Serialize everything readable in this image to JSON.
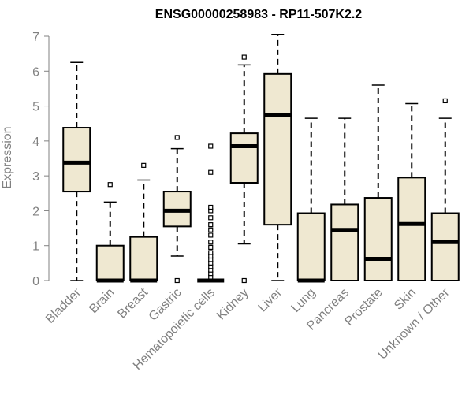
{
  "chart_data": {
    "type": "box",
    "title": "ENSG00000258983 - RP11-507K2.2",
    "xlabel": "",
    "ylabel": "Expression",
    "ylim": [
      0,
      7
    ],
    "yticks": [
      0,
      1,
      2,
      3,
      4,
      5,
      6,
      7
    ],
    "grid": false,
    "box_fill": "#efe8d1",
    "categories": [
      "Bladder",
      "Brain",
      "Breast",
      "Gastric",
      "Hematopoietic cells",
      "Kidney",
      "Liver",
      "Lung",
      "Pancreas",
      "Prostate",
      "Skin",
      "Unknown / Other"
    ],
    "boxes": [
      {
        "whisker_low": 0,
        "q1": 2.55,
        "median": 3.38,
        "q3": 4.38,
        "whisker_high": 6.25,
        "outliers": []
      },
      {
        "whisker_low": 0,
        "q1": 0,
        "median": 0,
        "q3": 1.0,
        "whisker_high": 2.25,
        "outliers": [
          2.75
        ]
      },
      {
        "whisker_low": 0,
        "q1": 0,
        "median": 0,
        "q3": 1.25,
        "whisker_high": 2.88,
        "outliers": [
          3.3
        ]
      },
      {
        "whisker_low": 0.7,
        "q1": 1.55,
        "median": 2.0,
        "q3": 2.55,
        "whisker_high": 3.78,
        "outliers": [
          0,
          4.1
        ]
      },
      {
        "whisker_low": 0,
        "q1": 0,
        "median": 0,
        "q3": 0,
        "whisker_high": 0,
        "outliers": [
          0.1,
          0.2,
          0.3,
          0.4,
          0.5,
          0.6,
          0.7,
          0.8,
          0.95,
          1.1,
          1.3,
          1.45,
          1.6,
          1.8,
          2.0,
          2.1,
          3.1,
          3.85
        ]
      },
      {
        "whisker_low": 1.05,
        "q1": 2.8,
        "median": 3.85,
        "q3": 4.22,
        "whisker_high": 6.18,
        "outliers": [
          0,
          6.4
        ]
      },
      {
        "whisker_low": 0,
        "q1": 1.6,
        "median": 4.75,
        "q3": 5.92,
        "whisker_high": 7.05,
        "outliers": []
      },
      {
        "whisker_low": 0,
        "q1": 0,
        "median": 0,
        "q3": 1.93,
        "whisker_high": 4.65,
        "outliers": []
      },
      {
        "whisker_low": 0,
        "q1": 0,
        "median": 1.45,
        "q3": 2.18,
        "whisker_high": 4.65,
        "outliers": []
      },
      {
        "whisker_low": 0,
        "q1": 0,
        "median": 0.62,
        "q3": 2.37,
        "whisker_high": 5.6,
        "outliers": []
      },
      {
        "whisker_low": 0,
        "q1": 0,
        "median": 1.62,
        "q3": 2.95,
        "whisker_high": 5.07,
        "outliers": []
      },
      {
        "whisker_low": 0,
        "q1": 0,
        "median": 1.1,
        "q3": 1.93,
        "whisker_high": 4.65,
        "outliers": [
          5.15
        ]
      }
    ]
  }
}
